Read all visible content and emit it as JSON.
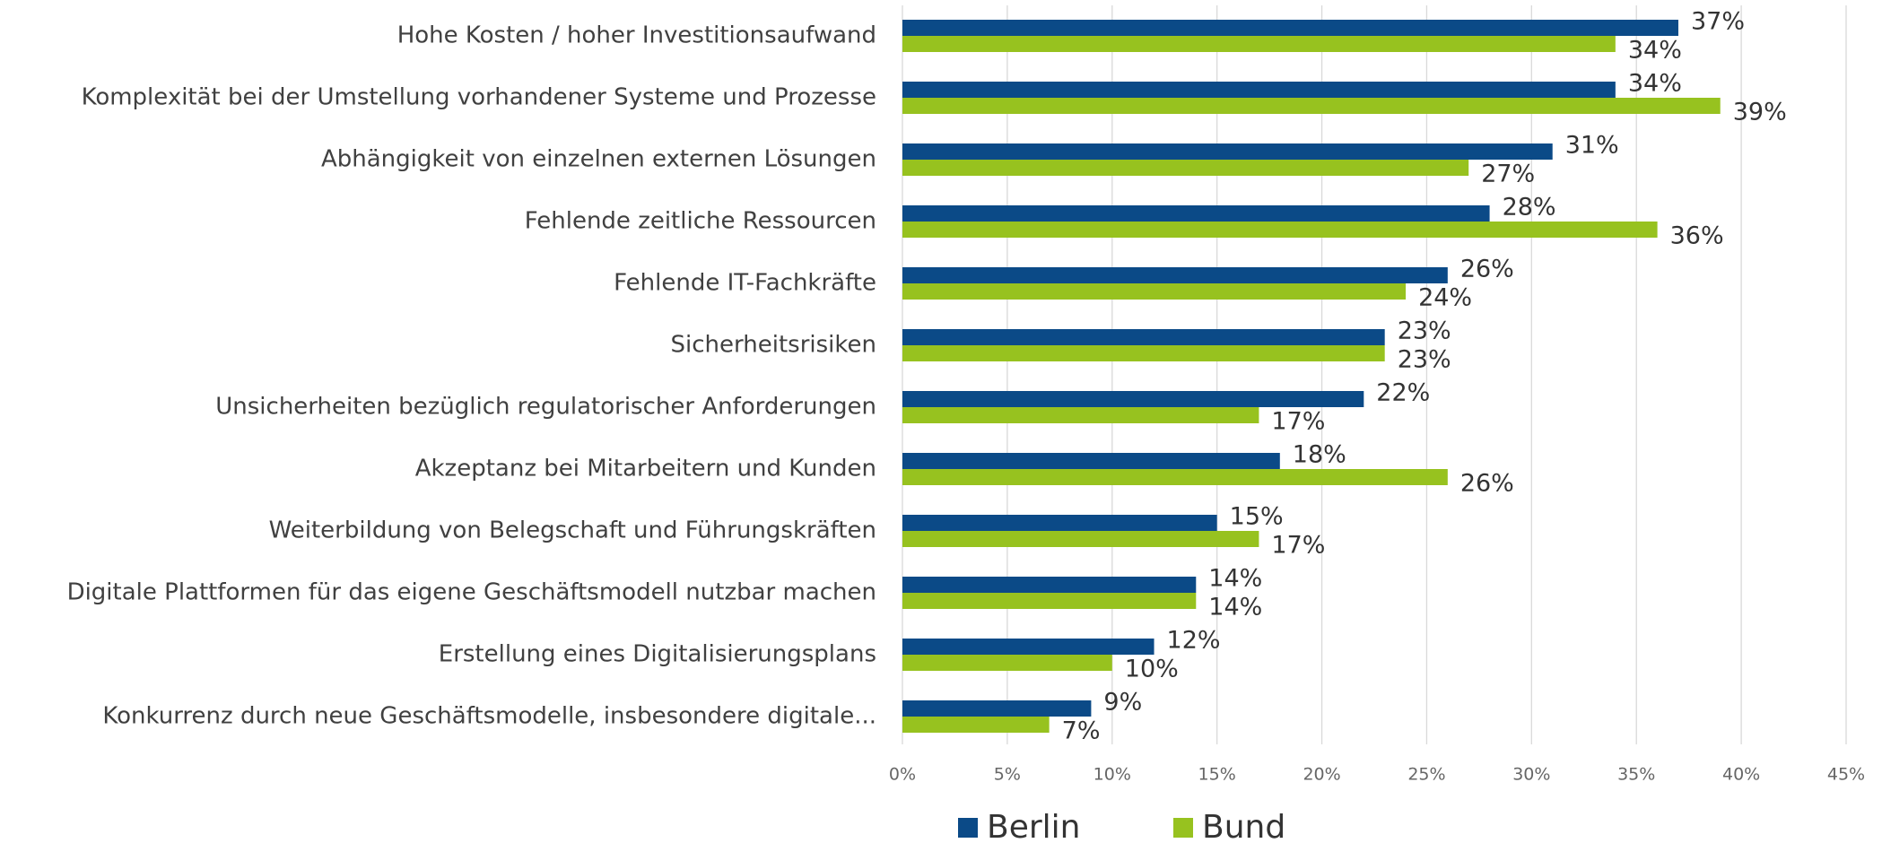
{
  "chart_data": {
    "type": "barh",
    "categories": [
      "Hohe Kosten / hoher Investitionsaufwand",
      "Komplexität bei der Umstellung vorhandener Systeme und Prozesse",
      "Abhängigkeit von einzelnen externen Lösungen ",
      "Fehlende zeitliche Ressourcen",
      "Fehlende IT-Fachkräfte",
      "Sicherheitsrisiken",
      "Unsicherheiten bezüglich regulatorischer Anforderungen ",
      "Akzeptanz bei Mitarbeitern und Kunden",
      "Weiterbildung von Belegschaft und Führungskräften",
      "Digitale Plattformen für das eigene Geschäftsmodell nutzbar machen",
      "Erstellung eines Digitalisierungsplans ",
      "Konkurrenz durch neue Geschäftsmodelle, insbesondere digitale..."
    ],
    "series": [
      {
        "name": "Berlin",
        "color": "#0b4a87",
        "values": [
          37,
          34,
          31,
          28,
          26,
          23,
          22,
          18,
          15,
          14,
          12,
          9
        ],
        "value_labels": [
          "37%",
          "34%",
          "31%",
          "28%",
          "26%",
          "23%",
          "22%",
          "18%",
          "15%",
          "14%",
          "12%",
          "9%"
        ]
      },
      {
        "name": "Bund",
        "color": "#97c21f",
        "values": [
          34,
          39,
          27,
          36,
          24,
          23,
          17,
          26,
          17,
          14,
          10,
          7
        ],
        "value_labels": [
          "34%",
          "39%",
          "27%",
          "36%",
          "24%",
          "23%",
          "17%",
          "26%",
          "17%",
          "14%",
          "10%",
          "7%"
        ]
      }
    ],
    "xlim": [
      0,
      45
    ],
    "xticks": [
      {
        "value": 0,
        "label": "0%"
      },
      {
        "value": 5,
        "label": "5%"
      },
      {
        "value": 10,
        "label": "10%"
      },
      {
        "value": 15,
        "label": "15%"
      },
      {
        "value": 20,
        "label": "20%"
      },
      {
        "value": 25,
        "label": "25%"
      },
      {
        "value": 30,
        "label": "30%"
      },
      {
        "value": 35,
        "label": "35%"
      },
      {
        "value": 40,
        "label": "40%"
      },
      {
        "value": 45,
        "label": "45%"
      }
    ],
    "grid": true,
    "legend": "bottom"
  }
}
